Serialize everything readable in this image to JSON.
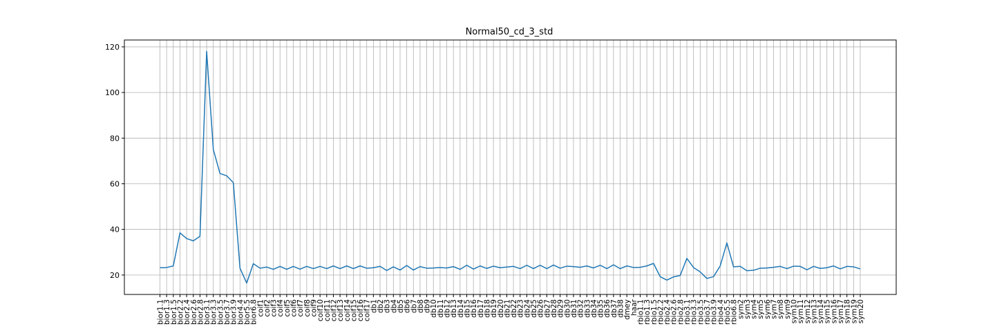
{
  "chart_data": {
    "type": "line",
    "title": "Normal50_cd_3_std",
    "xlabel": "",
    "ylabel": "",
    "ylim": [
      11.5,
      123
    ],
    "yticks": [
      20,
      40,
      60,
      80,
      100,
      120
    ],
    "grid": true,
    "color": "#1f77b4",
    "categories": [
      "bior1.1",
      "bior1.3",
      "bior1.5",
      "bior2.2",
      "bior2.4",
      "bior2.6",
      "bior2.8",
      "bior3.1",
      "bior3.3",
      "bior3.5",
      "bior3.7",
      "bior3.9",
      "bior4.4",
      "bior5.5",
      "bior6.8",
      "coif1",
      "coif2",
      "coif3",
      "coif4",
      "coif5",
      "coif6",
      "coif7",
      "coif8",
      "coif9",
      "coif10",
      "coif11",
      "coif12",
      "coif13",
      "coif14",
      "coif15",
      "coif16",
      "coif17",
      "db1",
      "db2",
      "db3",
      "db4",
      "db5",
      "db6",
      "db7",
      "db8",
      "db9",
      "db10",
      "db11",
      "db12",
      "db13",
      "db14",
      "db15",
      "db16",
      "db17",
      "db18",
      "db19",
      "db20",
      "db21",
      "db22",
      "db23",
      "db24",
      "db25",
      "db26",
      "db27",
      "db28",
      "db29",
      "db30",
      "db31",
      "db32",
      "db33",
      "db34",
      "db35",
      "db36",
      "db37",
      "db38",
      "dmey",
      "haar",
      "rbio1.1",
      "rbio1.3",
      "rbio1.5",
      "rbio2.2",
      "rbio2.4",
      "rbio2.6",
      "rbio2.8",
      "rbio3.1",
      "rbio3.3",
      "rbio3.5",
      "rbio3.7",
      "rbio3.9",
      "rbio4.4",
      "rbio5.5",
      "rbio6.8",
      "sym2",
      "sym3",
      "sym4",
      "sym5",
      "sym6",
      "sym7",
      "sym8",
      "sym9",
      "sym10",
      "sym11",
      "sym12",
      "sym13",
      "sym14",
      "sym15",
      "sym16",
      "sym17",
      "sym18",
      "sym19",
      "sym20"
    ],
    "values": [
      23.2,
      23.3,
      24.0,
      38.5,
      36.0,
      35.0,
      37.0,
      118.0,
      75.0,
      64.5,
      63.5,
      60.5,
      23.0,
      16.5,
      25.0,
      23.0,
      23.5,
      22.5,
      23.8,
      22.5,
      23.8,
      22.6,
      23.8,
      22.8,
      23.8,
      22.8,
      24.0,
      22.8,
      24.0,
      22.8,
      24.0,
      23.0,
      23.2,
      23.8,
      22.0,
      23.6,
      22.2,
      24.2,
      22.2,
      23.7,
      23.0,
      23.1,
      23.3,
      23.1,
      23.7,
      22.5,
      24.3,
      22.6,
      24.0,
      22.9,
      23.9,
      23.2,
      23.5,
      23.8,
      22.8,
      24.3,
      22.8,
      24.3,
      22.8,
      24.4,
      23.0,
      23.9,
      23.7,
      23.4,
      24.0,
      23.1,
      24.3,
      22.8,
      24.5,
      22.8,
      24.0,
      23.3,
      23.4,
      24.0,
      25.1,
      19.3,
      17.8,
      19.2,
      19.8,
      27.3,
      23.3,
      21.4,
      18.5,
      19.3,
      24.0,
      34.1,
      23.6,
      23.8,
      21.9,
      22.1,
      23.0,
      23.1,
      23.4,
      23.8,
      22.8,
      23.9,
      23.8,
      22.3,
      23.8,
      22.9,
      23.2,
      24.0,
      22.7,
      23.8,
      23.6,
      22.7
    ]
  }
}
